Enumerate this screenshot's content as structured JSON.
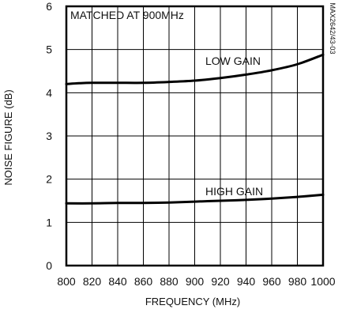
{
  "chart_data": {
    "type": "line",
    "xlabel": "FREQUENCY (MHz)",
    "ylabel": "NOISE FIGURE (dB)",
    "xlim": [
      800,
      1000
    ],
    "ylim": [
      0,
      6
    ],
    "x_ticks": [
      800,
      820,
      840,
      860,
      880,
      900,
      920,
      940,
      960,
      980,
      1000
    ],
    "y_ticks": [
      0,
      1,
      2,
      3,
      4,
      5,
      6
    ],
    "grid": true,
    "annotations": {
      "condition": "MATCHED AT 900MHz",
      "part_number": "MAX2642/43-03"
    },
    "series": [
      {
        "name": "LOW GAIN",
        "x": [
          800,
          810,
          820,
          840,
          860,
          880,
          900,
          920,
          940,
          960,
          980,
          1000
        ],
        "y": [
          4.2,
          4.22,
          4.23,
          4.23,
          4.23,
          4.25,
          4.28,
          4.34,
          4.42,
          4.52,
          4.66,
          4.88
        ]
      },
      {
        "name": "HIGH GAIN",
        "x": [
          800,
          820,
          840,
          860,
          880,
          900,
          920,
          940,
          960,
          980,
          1000
        ],
        "y": [
          1.44,
          1.44,
          1.45,
          1.45,
          1.46,
          1.48,
          1.5,
          1.52,
          1.55,
          1.59,
          1.64
        ]
      }
    ]
  }
}
